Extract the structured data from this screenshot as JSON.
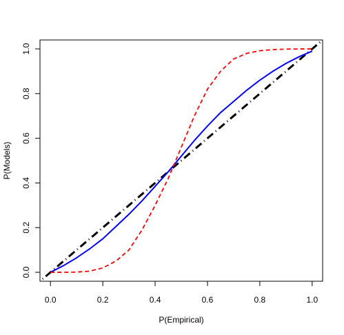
{
  "chart_data": {
    "type": "line",
    "title": "",
    "xlabel": "P(Empirical)",
    "ylabel": "P(Models)",
    "xlim": [
      -0.04,
      1.04
    ],
    "ylim": [
      -0.04,
      1.04
    ],
    "x_ticks": [
      0.0,
      0.2,
      0.4,
      0.6,
      0.8,
      1.0
    ],
    "y_ticks": [
      0.0,
      0.2,
      0.4,
      0.6,
      0.8,
      1.0
    ],
    "x_tick_labels": [
      "0.0",
      "0.2",
      "0.4",
      "0.6",
      "0.8",
      "1.0"
    ],
    "y_tick_labels": [
      "0.0",
      "0.2",
      "0.4",
      "0.6",
      "0.8",
      "1.0"
    ],
    "grid": false,
    "legend": "none",
    "series": [
      {
        "color": "#000000",
        "style": "dotdash",
        "x": [
          -0.03,
          1.03
        ],
        "y": [
          -0.03,
          1.03
        ]
      },
      {
        "color": "#0000ff",
        "style": "solid",
        "x": [
          0.0,
          0.05,
          0.1,
          0.15,
          0.2,
          0.25,
          0.3,
          0.35,
          0.4,
          0.45,
          0.5,
          0.55,
          0.6,
          0.65,
          0.7,
          0.75,
          0.8,
          0.85,
          0.9,
          0.95,
          1.0
        ],
        "y": [
          0.0,
          0.03,
          0.065,
          0.105,
          0.15,
          0.205,
          0.26,
          0.32,
          0.385,
          0.45,
          0.52,
          0.59,
          0.655,
          0.715,
          0.765,
          0.815,
          0.86,
          0.9,
          0.935,
          0.965,
          0.99
        ]
      },
      {
        "color": "#ff0000",
        "style": "dashed",
        "x": [
          0.0,
          0.05,
          0.1,
          0.15,
          0.2,
          0.25,
          0.3,
          0.35,
          0.4,
          0.45,
          0.5,
          0.55,
          0.6,
          0.65,
          0.7,
          0.75,
          0.8,
          0.85,
          0.9,
          0.95,
          1.0
        ],
        "y": [
          0.0,
          0.0,
          0.001,
          0.005,
          0.02,
          0.05,
          0.1,
          0.19,
          0.3,
          0.42,
          0.56,
          0.7,
          0.82,
          0.9,
          0.955,
          0.98,
          0.992,
          0.997,
          0.999,
          1.0,
          1.0
        ]
      }
    ]
  }
}
